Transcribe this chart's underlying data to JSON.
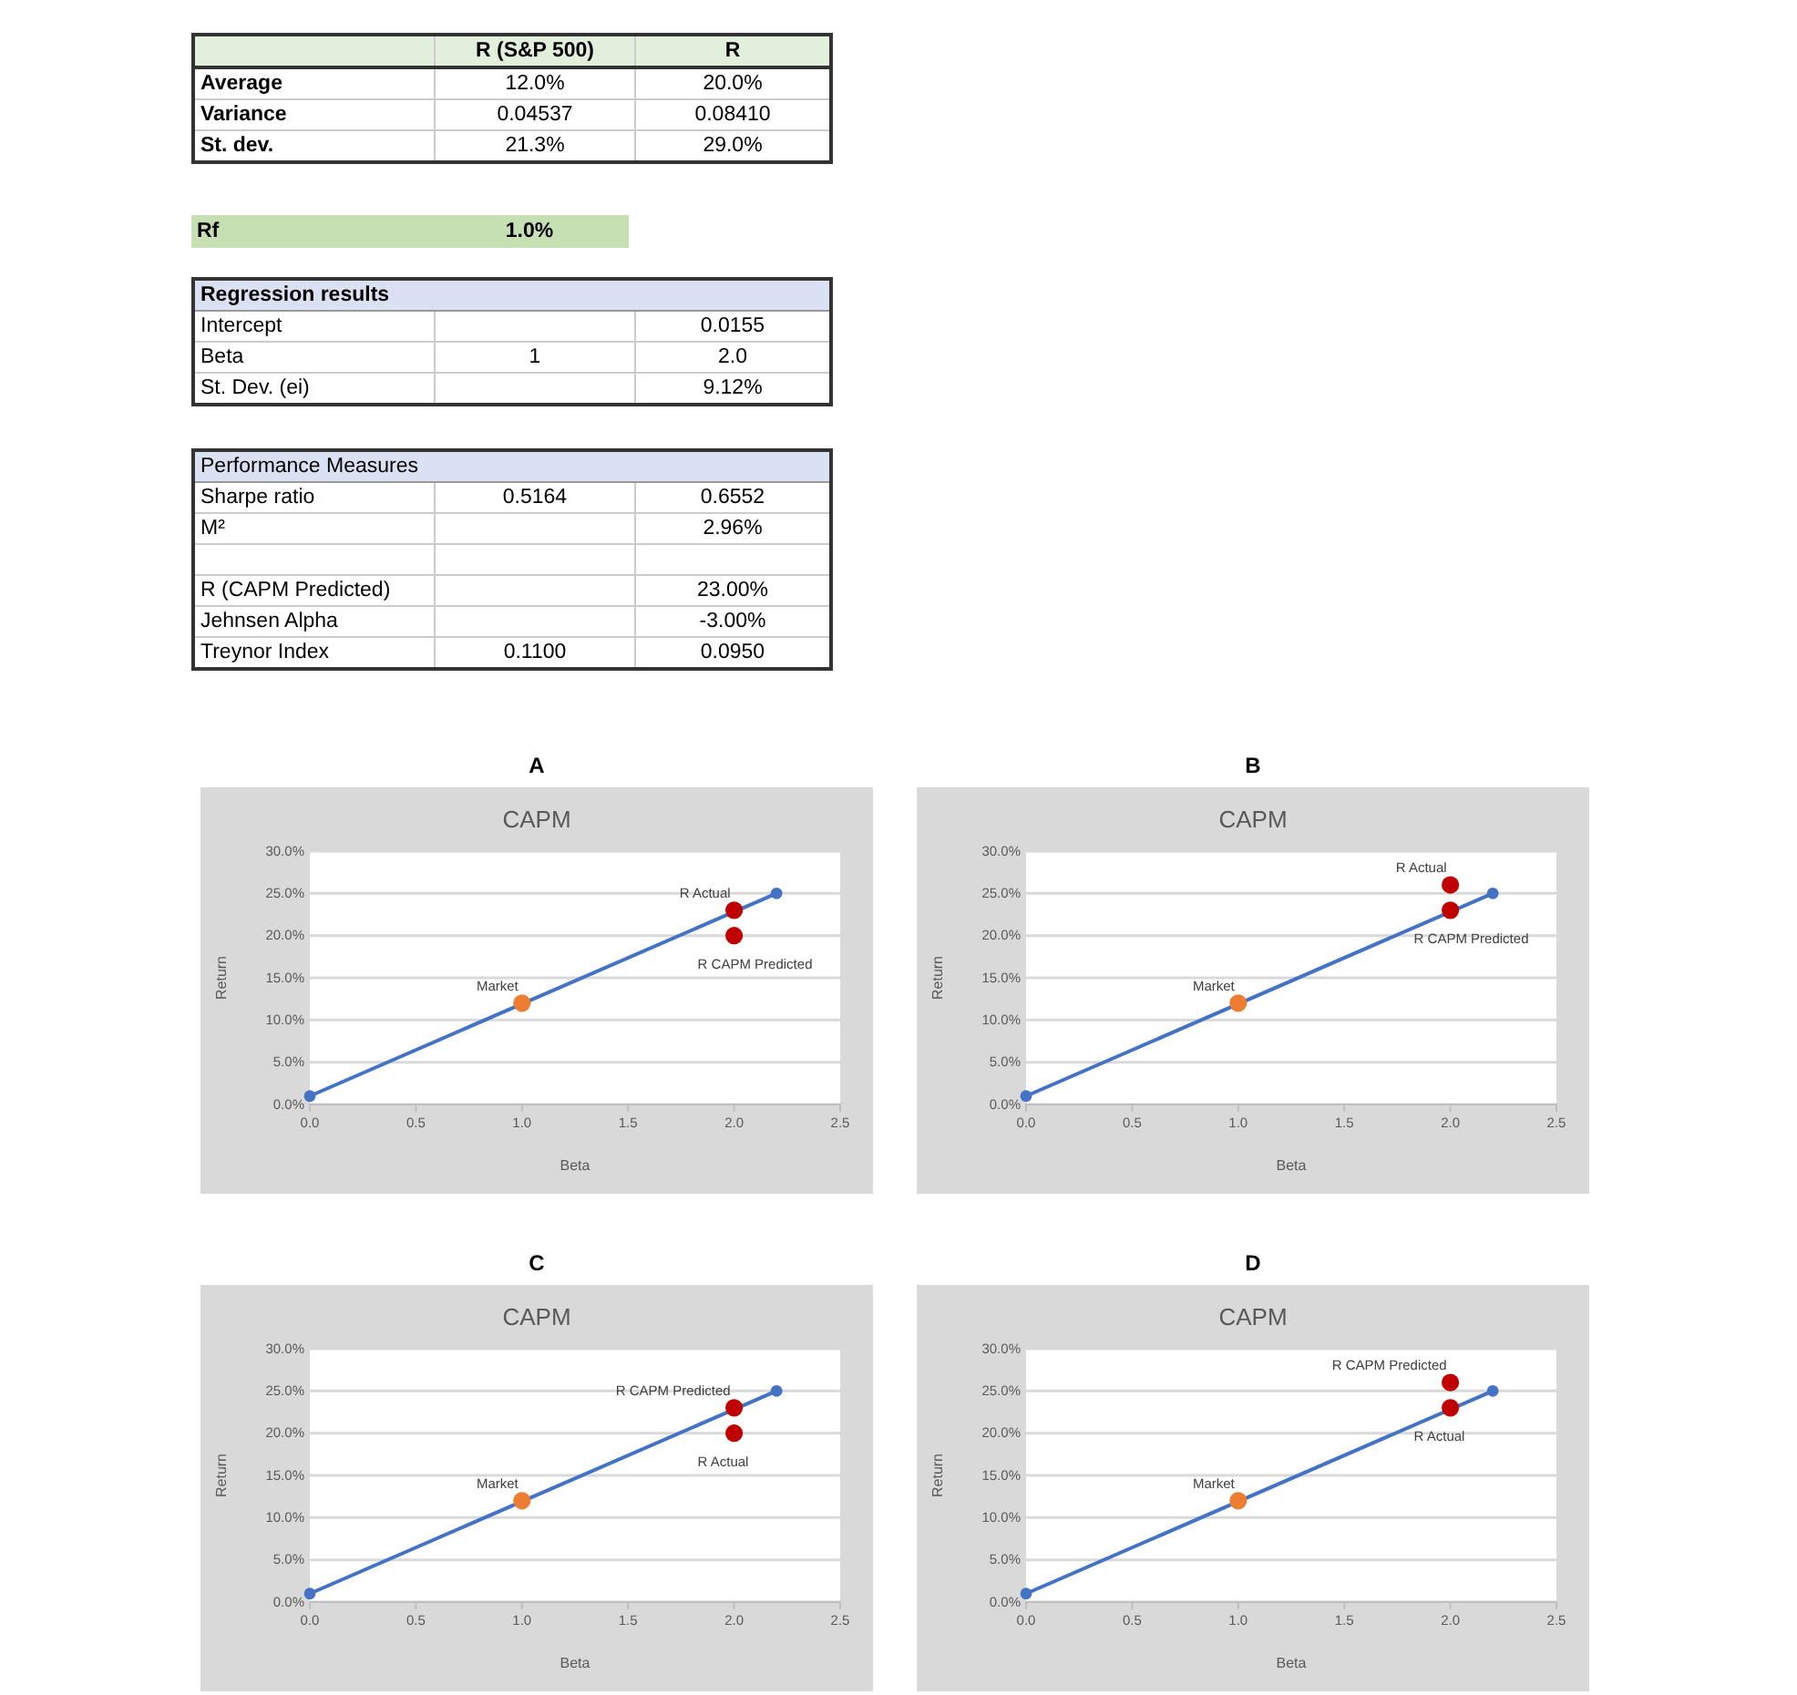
{
  "chart_data": [
    {
      "type": "other",
      "color": "#e2efda",
      "cell_labels": [
        [
          null,
          "R (S&P 500)",
          "R"
        ],
        [
          "Average",
          "12.0%",
          "20.0%"
        ],
        [
          "Variance",
          "0.04537",
          "0.08410"
        ],
        [
          "St. dev.",
          "21.3%",
          "29.0%"
        ]
      ]
    },
    {
      "type": "other",
      "color": "#c6e0b4",
      "cell_labels": [
        [
          "Rf",
          "1.0%"
        ]
      ]
    },
    {
      "type": "other",
      "color": "#d9e1f2",
      "cell_labels": [
        [
          "Regression results"
        ],
        [
          "Intercept",
          null,
          "0.0155"
        ],
        [
          "Beta",
          "1",
          "2.0"
        ],
        [
          "St. Dev. (ei)",
          null,
          "9.12%"
        ]
      ]
    },
    {
      "type": "other",
      "color": "#d9e1f2",
      "cell_labels": [
        [
          "Performance Measures"
        ],
        [
          "Sharpe ratio",
          "0.5164",
          "0.6552"
        ],
        [
          "M²",
          null,
          "2.96%"
        ],
        [
          null,
          null,
          null
        ],
        [
          "R (CAPM Predicted)",
          null,
          "23.00%"
        ],
        [
          "Jehnsen Alpha",
          null,
          "-3.00%"
        ],
        [
          "Treynor Index",
          "0.1100",
          "0.0950"
        ]
      ]
    },
    {
      "type": "line",
      "title": "CAPM",
      "annotations": [
        "A"
      ],
      "xlabel": "Beta",
      "ylabel": "Return",
      "grid": "y",
      "marker": "circle",
      "xlim": [
        0,
        2.5
      ],
      "xticks": [
        {
          "value": 0,
          "label": "0.0"
        },
        {
          "value": 0.5,
          "label": "0.5"
        },
        {
          "value": 1,
          "label": "1.0"
        },
        {
          "value": 1.5,
          "label": "1.5"
        },
        {
          "value": 2,
          "label": "2.0"
        },
        {
          "value": 2.5,
          "label": "2.5"
        }
      ],
      "ylim": [
        0,
        30
      ],
      "yticks": [
        {
          "value": 0,
          "label": "0.0%"
        },
        {
          "value": 5,
          "label": "5.0%"
        },
        {
          "value": 10,
          "label": "10.0%"
        },
        {
          "value": 15,
          "label": "15.0%"
        },
        {
          "value": 20,
          "label": "20.0%"
        },
        {
          "value": 25,
          "label": "25.0%"
        },
        {
          "value": 30,
          "label": "30.0%"
        }
      ],
      "series": [
        {
          "type": "line",
          "color": "#4472c4",
          "x": [
            0,
            2.2
          ],
          "values": [
            1,
            25
          ]
        },
        {
          "type": "scatter",
          "name": "Market",
          "color": "#ed7d31",
          "x": [
            1
          ],
          "values": [
            12
          ]
        },
        {
          "type": "scatter",
          "name": "R Actual",
          "color": "#c00000",
          "x": [
            2
          ],
          "values": [
            23
          ]
        },
        {
          "type": "scatter",
          "name": "R CAPM Predicted",
          "color": "#c00000",
          "x": [
            2
          ],
          "values": [
            20
          ]
        }
      ]
    },
    {
      "type": "line",
      "title": "CAPM",
      "annotations": [
        "B"
      ],
      "xlabel": "Beta",
      "ylabel": "Return",
      "grid": "y",
      "marker": "circle",
      "xlim": [
        0,
        2.5
      ],
      "xticks": [
        {
          "value": 0,
          "label": "0.0"
        },
        {
          "value": 0.5,
          "label": "0.5"
        },
        {
          "value": 1,
          "label": "1.0"
        },
        {
          "value": 1.5,
          "label": "1.5"
        },
        {
          "value": 2,
          "label": "2.0"
        },
        {
          "value": 2.5,
          "label": "2.5"
        }
      ],
      "ylim": [
        0,
        30
      ],
      "yticks": [
        {
          "value": 0,
          "label": "0.0%"
        },
        {
          "value": 5,
          "label": "5.0%"
        },
        {
          "value": 10,
          "label": "10.0%"
        },
        {
          "value": 15,
          "label": "15.0%"
        },
        {
          "value": 20,
          "label": "20.0%"
        },
        {
          "value": 25,
          "label": "25.0%"
        },
        {
          "value": 30,
          "label": "30.0%"
        }
      ],
      "series": [
        {
          "type": "line",
          "color": "#4472c4",
          "x": [
            0,
            2.2
          ],
          "values": [
            1,
            25
          ]
        },
        {
          "type": "scatter",
          "name": "Market",
          "color": "#ed7d31",
          "x": [
            1
          ],
          "values": [
            12
          ]
        },
        {
          "type": "scatter",
          "name": "R Actual",
          "color": "#c00000",
          "x": [
            2
          ],
          "values": [
            26
          ]
        },
        {
          "type": "scatter",
          "name": "R CAPM Predicted",
          "color": "#c00000",
          "x": [
            2
          ],
          "values": [
            23
          ]
        }
      ]
    },
    {
      "type": "line",
      "title": "CAPM",
      "annotations": [
        "C"
      ],
      "xlabel": "Beta",
      "ylabel": "Return",
      "grid": "y",
      "marker": "circle",
      "xlim": [
        0,
        2.5
      ],
      "xticks": [
        {
          "value": 0,
          "label": "0.0"
        },
        {
          "value": 0.5,
          "label": "0.5"
        },
        {
          "value": 1,
          "label": "1.0"
        },
        {
          "value": 1.5,
          "label": "1.5"
        },
        {
          "value": 2,
          "label": "2.0"
        },
        {
          "value": 2.5,
          "label": "2.5"
        }
      ],
      "ylim": [
        0,
        30
      ],
      "yticks": [
        {
          "value": 0,
          "label": "0.0%"
        },
        {
          "value": 5,
          "label": "5.0%"
        },
        {
          "value": 10,
          "label": "10.0%"
        },
        {
          "value": 15,
          "label": "15.0%"
        },
        {
          "value": 20,
          "label": "20.0%"
        },
        {
          "value": 25,
          "label": "25.0%"
        },
        {
          "value": 30,
          "label": "30.0%"
        }
      ],
      "series": [
        {
          "type": "line",
          "color": "#4472c4",
          "x": [
            0,
            2.2
          ],
          "values": [
            1,
            25
          ]
        },
        {
          "type": "scatter",
          "name": "Market",
          "color": "#ed7d31",
          "x": [
            1
          ],
          "values": [
            12
          ]
        },
        {
          "type": "scatter",
          "name": "R CAPM Predicted",
          "color": "#c00000",
          "x": [
            2
          ],
          "values": [
            23
          ]
        },
        {
          "type": "scatter",
          "name": "R Actual",
          "color": "#c00000",
          "x": [
            2
          ],
          "values": [
            20
          ]
        }
      ]
    },
    {
      "type": "line",
      "title": "CAPM",
      "annotations": [
        "D"
      ],
      "xlabel": "Beta",
      "ylabel": "Return",
      "grid": "y",
      "marker": "circle",
      "xlim": [
        0,
        2.5
      ],
      "xticks": [
        {
          "value": 0,
          "label": "0.0"
        },
        {
          "value": 0.5,
          "label": "0.5"
        },
        {
          "value": 1,
          "label": "1.0"
        },
        {
          "value": 1.5,
          "label": "1.5"
        },
        {
          "value": 2,
          "label": "2.0"
        },
        {
          "value": 2.5,
          "label": "2.5"
        }
      ],
      "ylim": [
        0,
        30
      ],
      "yticks": [
        {
          "value": 0,
          "label": "0.0%"
        },
        {
          "value": 5,
          "label": "5.0%"
        },
        {
          "value": 10,
          "label": "10.0%"
        },
        {
          "value": 15,
          "label": "15.0%"
        },
        {
          "value": 20,
          "label": "20.0%"
        },
        {
          "value": 25,
          "label": "25.0%"
        },
        {
          "value": 30,
          "label": "30.0%"
        }
      ],
      "series": [
        {
          "type": "line",
          "color": "#4472c4",
          "x": [
            0,
            2.2
          ],
          "values": [
            1,
            25
          ]
        },
        {
          "type": "scatter",
          "name": "Market",
          "color": "#ed7d31",
          "x": [
            1
          ],
          "values": [
            12
          ]
        },
        {
          "type": "scatter",
          "name": "R CAPM Predicted",
          "color": "#c00000",
          "x": [
            2
          ],
          "values": [
            26
          ]
        },
        {
          "type": "scatter",
          "name": "R Actual",
          "color": "#c00000",
          "x": [
            2
          ],
          "values": [
            23
          ]
        }
      ]
    }
  ]
}
